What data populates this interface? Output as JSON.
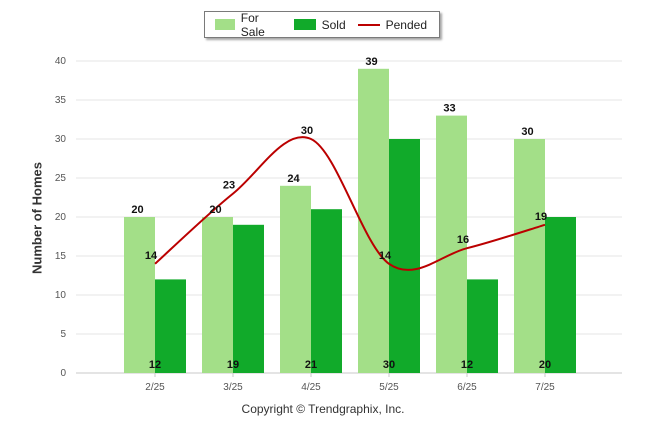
{
  "chart_data": {
    "type": "bar",
    "categories": [
      "2/25",
      "3/25",
      "4/25",
      "5/25",
      "6/25",
      "7/25"
    ],
    "series": [
      {
        "name": "For Sale",
        "kind": "bar",
        "color": "#a3df88",
        "values": [
          20,
          20,
          24,
          39,
          33,
          30
        ]
      },
      {
        "name": "Sold",
        "kind": "bar",
        "color": "#11aa2a",
        "values": [
          12,
          19,
          21,
          30,
          12,
          20
        ]
      },
      {
        "name": "Pended",
        "kind": "line",
        "color": "#bb0000",
        "values": [
          14,
          23,
          30,
          14,
          16,
          19
        ]
      }
    ],
    "ylabel": "Number of Homes",
    "ylim": [
      0,
      40
    ],
    "yticks": [
      0,
      5,
      10,
      15,
      20,
      25,
      30,
      35,
      40
    ],
    "grid": true,
    "legend_position": "top-center"
  },
  "copyright": "Copyright © Trendgraphix, Inc."
}
